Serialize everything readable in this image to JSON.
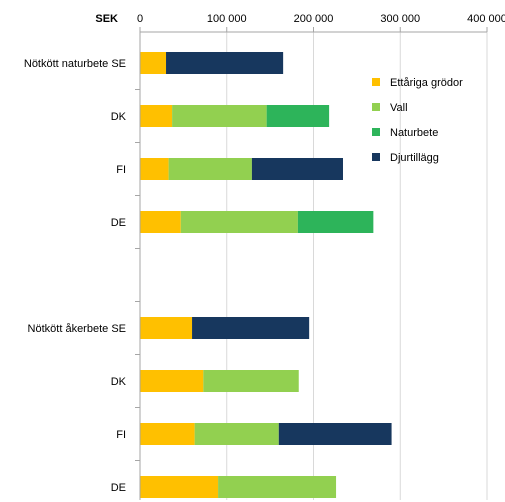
{
  "chart_data": {
    "type": "bar",
    "orientation": "horizontal",
    "stacked": true,
    "unit_label": "SEK",
    "xlim": [
      0,
      400000
    ],
    "x_ticks": [
      0,
      100000,
      200000,
      300000,
      400000
    ],
    "x_tick_labels": [
      "0",
      "100 000",
      "200 000",
      "300 000",
      "400 000"
    ],
    "grid": true,
    "legend_position": "right",
    "categories": [
      "Nötkött naturbete SE",
      "DK",
      "FI",
      "DE",
      "",
      "Nötkött åkerbete SE",
      "DK",
      "FI",
      "DE"
    ],
    "series": [
      {
        "name": "Ettåriga grödor",
        "color": "#FFC000",
        "values": [
          30000,
          37000,
          33000,
          47000,
          null,
          60000,
          73000,
          63000,
          90000
        ]
      },
      {
        "name": "Vall",
        "color": "#92D050",
        "values": [
          0,
          109000,
          96000,
          135000,
          null,
          0,
          110000,
          97000,
          136000
        ]
      },
      {
        "name": "Naturbete",
        "color": "#2DB45A",
        "values": [
          0,
          72000,
          0,
          87000,
          null,
          0,
          0,
          0,
          0
        ]
      },
      {
        "name": "Djurtillägg",
        "color": "#17375E",
        "values": [
          135000,
          0,
          105000,
          0,
          null,
          135000,
          0,
          130000,
          0
        ]
      }
    ]
  }
}
